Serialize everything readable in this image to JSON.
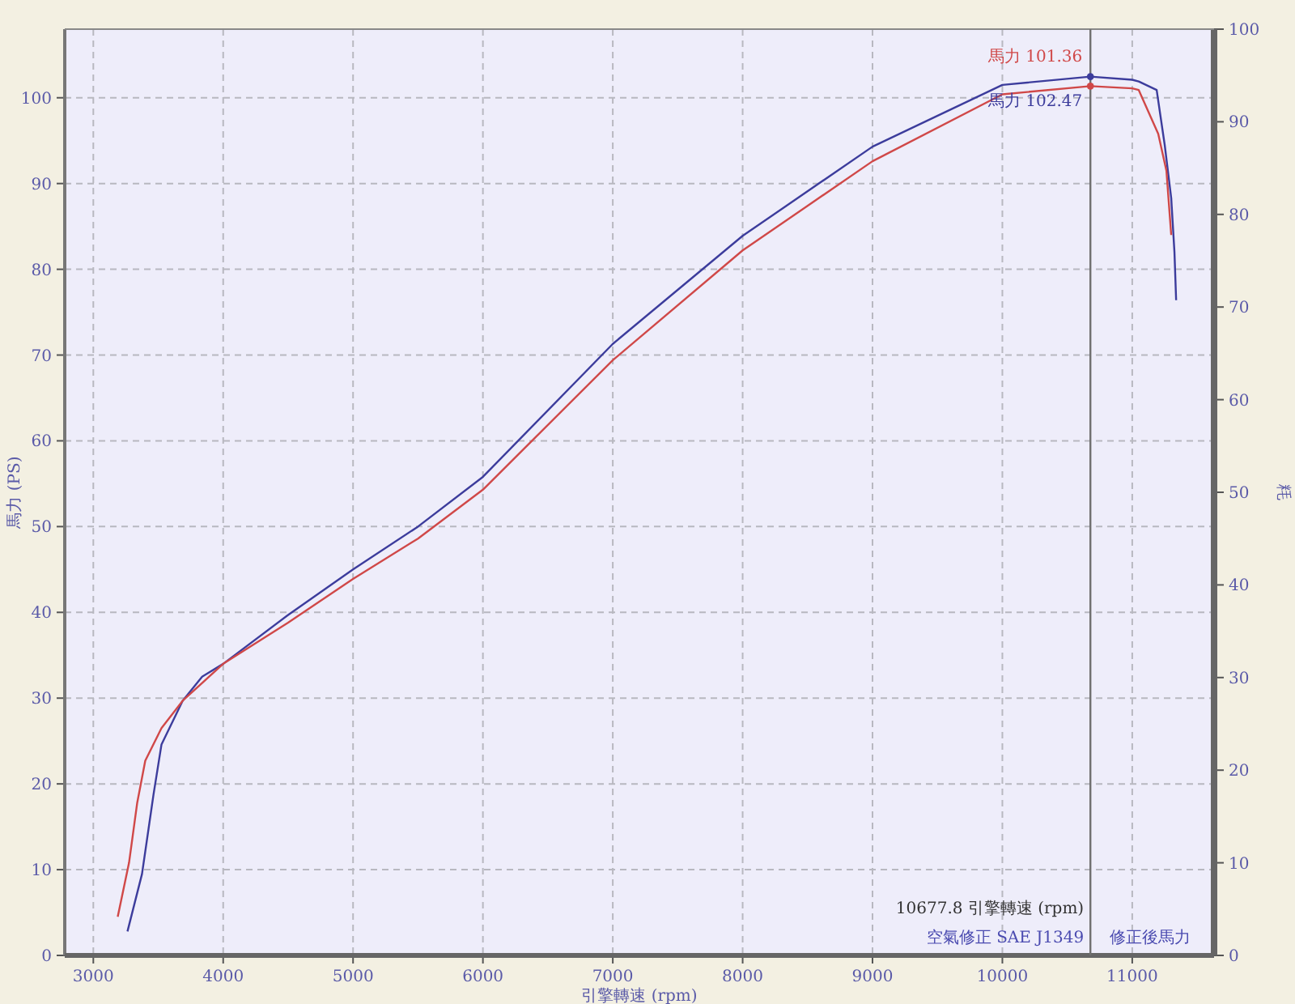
{
  "chart_data": {
    "type": "line",
    "xlabel": "引擎轉速 (rpm)",
    "ylabel": "馬力 (PS)",
    "y2label": "粍",
    "xlim": [
      2780,
      11630
    ],
    "xticks": [
      3000,
      4000,
      5000,
      6000,
      7000,
      8000,
      9000,
      10000,
      11000
    ],
    "ylim": [
      0,
      108
    ],
    "yticks": [
      0,
      10,
      20,
      30,
      40,
      50,
      60,
      70,
      80,
      90,
      100
    ],
    "y2lim": [
      0,
      100
    ],
    "y2ticks": [
      0,
      10,
      20,
      30,
      40,
      50,
      60,
      70,
      80,
      90,
      100
    ],
    "grid": true,
    "line_style": "solid",
    "marker": "none",
    "series": [
      {
        "color": "#3c3c9c",
        "x": [
          3263,
          3375,
          3463,
          3525,
          3688,
          3838,
          4000,
          4500,
          5000,
          5500,
          6000,
          7000,
          8000,
          9000,
          10000,
          10677.8,
          11000,
          11050,
          11188,
          11250,
          11300,
          11325,
          11338
        ],
        "values": [
          2.8,
          9.5,
          18.7,
          24.6,
          29.7,
          32.5,
          34,
          39.7,
          45,
          50,
          55.8,
          71.3,
          83.9,
          94.3,
          101.5,
          102.47,
          102.1,
          101.9,
          100.9,
          94.5,
          88.3,
          82,
          76.4
        ]
      },
      {
        "color": "#d04848",
        "x": [
          3188,
          3275,
          3338,
          3400,
          3525,
          3688,
          4000,
          4500,
          5000,
          5500,
          6000,
          7000,
          8000,
          9000,
          10000,
          10677.8,
          11000,
          11050,
          11200,
          11263,
          11300
        ],
        "values": [
          4.5,
          10.8,
          17.8,
          22.7,
          26.5,
          29.7,
          34,
          38.8,
          43.9,
          48.6,
          54.3,
          69.4,
          82.2,
          92.6,
          100.4,
          101.36,
          101.1,
          100.9,
          95.8,
          91.5,
          84
        ]
      }
    ],
    "ref_lines": [
      {
        "axis": "x",
        "value": 10677.8,
        "label": "10677.8 引擎轉速 (rpm)",
        "color": "#707070"
      }
    ],
    "annotations": [
      {
        "text": "馬力 101.36",
        "x": 10677.8,
        "y": 101.36
      },
      {
        "text": "馬力 102.47",
        "x": 10677.8,
        "y": 102.47
      },
      "空氣修正 SAE J1349",
      "修正後馬力"
    ]
  }
}
